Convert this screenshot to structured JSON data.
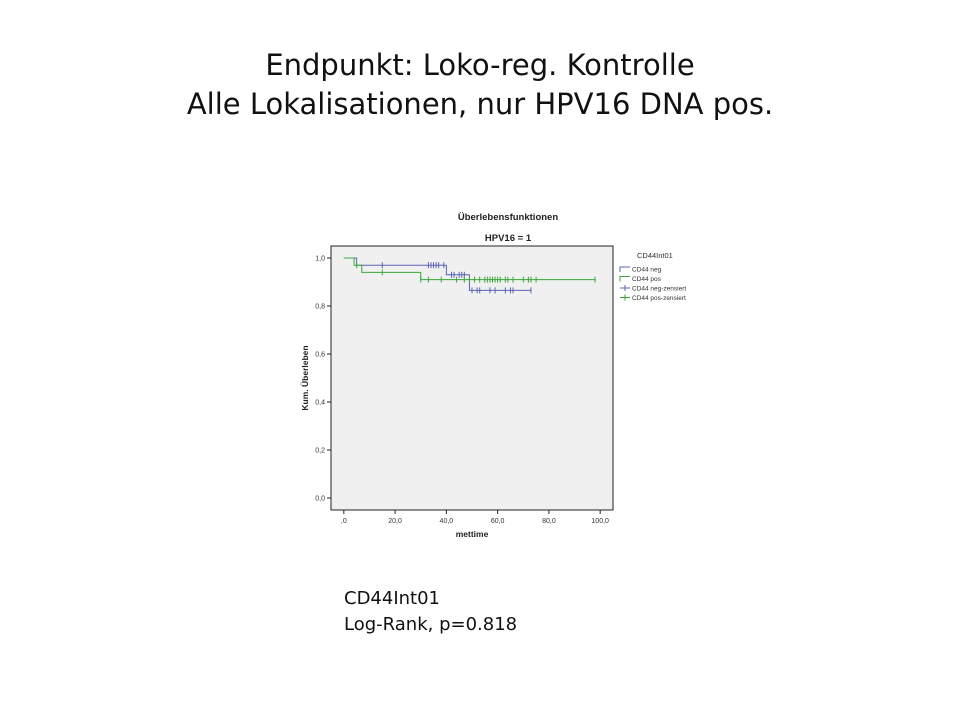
{
  "slide": {
    "title_line1": "Endpunkt: Loko-reg. Kontrolle",
    "title_line2": "Alle Lokalisationen, nur HPV16 DNA pos.",
    "note_line1": "CD44Int01",
    "note_line2": "Log-Rank, p=0.818"
  },
  "chart_data": {
    "type": "line",
    "title": "Überlebensfunktionen",
    "subtitle": "HPV16 = 1",
    "xlabel": "mettime",
    "ylabel": "Kum. Überleben",
    "xlim": [
      -5,
      105
    ],
    "ylim": [
      -0.05,
      1.05
    ],
    "xticks": [
      0,
      20,
      40,
      60,
      80,
      100
    ],
    "xtick_labels": [
      ",0",
      "20,0",
      "40,0",
      "60,0",
      "80,0",
      "100,0"
    ],
    "yticks": [
      0.0,
      0.2,
      0.4,
      0.6,
      0.8,
      1.0
    ],
    "ytick_labels": [
      "0,0",
      "0,2",
      "0,4",
      "0,6",
      "0,8",
      "1,0"
    ],
    "grid": false,
    "legend_title": "CD44Int01",
    "legend_position": "right",
    "legend": [
      "CD44 neg",
      "CD44 pos",
      "CD44 neg-zensiert",
      "CD44 pos-zensiert"
    ],
    "series": [
      {
        "name": "CD44 neg",
        "color": "#5a64b4",
        "steps": [
          [
            0,
            1.0
          ],
          [
            5,
            0.97
          ],
          [
            38,
            0.97
          ],
          [
            40,
            0.93
          ],
          [
            48,
            0.93
          ],
          [
            49,
            0.865
          ],
          [
            73,
            0.865
          ]
        ],
        "censored": [
          [
            15,
            0.97
          ],
          [
            33,
            0.97
          ],
          [
            34,
            0.97
          ],
          [
            35,
            0.97
          ],
          [
            36,
            0.97
          ],
          [
            37,
            0.97
          ],
          [
            39,
            0.97
          ],
          [
            42,
            0.93
          ],
          [
            43,
            0.93
          ],
          [
            45,
            0.93
          ],
          [
            46,
            0.93
          ],
          [
            47,
            0.93
          ],
          [
            50,
            0.865
          ],
          [
            52,
            0.865
          ],
          [
            53,
            0.865
          ],
          [
            57,
            0.865
          ],
          [
            59,
            0.865
          ],
          [
            63,
            0.865
          ],
          [
            65,
            0.865
          ],
          [
            66,
            0.865
          ],
          [
            73,
            0.865
          ]
        ]
      },
      {
        "name": "CD44 pos",
        "color": "#3aa63a",
        "steps": [
          [
            0,
            1.0
          ],
          [
            4,
            0.97
          ],
          [
            7,
            0.94
          ],
          [
            29,
            0.94
          ],
          [
            30,
            0.91
          ],
          [
            98,
            0.91
          ]
        ],
        "censored": [
          [
            5,
            0.97
          ],
          [
            15,
            0.94
          ],
          [
            30,
            0.91
          ],
          [
            33,
            0.91
          ],
          [
            38,
            0.91
          ],
          [
            44,
            0.91
          ],
          [
            47,
            0.91
          ],
          [
            49,
            0.91
          ],
          [
            51,
            0.91
          ],
          [
            53,
            0.91
          ],
          [
            55,
            0.91
          ],
          [
            56,
            0.91
          ],
          [
            57,
            0.91
          ],
          [
            58,
            0.91
          ],
          [
            59,
            0.91
          ],
          [
            60,
            0.91
          ],
          [
            61,
            0.91
          ],
          [
            63,
            0.91
          ],
          [
            64,
            0.91
          ],
          [
            66,
            0.91
          ],
          [
            70,
            0.91
          ],
          [
            72,
            0.91
          ],
          [
            73,
            0.91
          ],
          [
            75,
            0.91
          ],
          [
            98,
            0.91
          ]
        ]
      }
    ]
  }
}
